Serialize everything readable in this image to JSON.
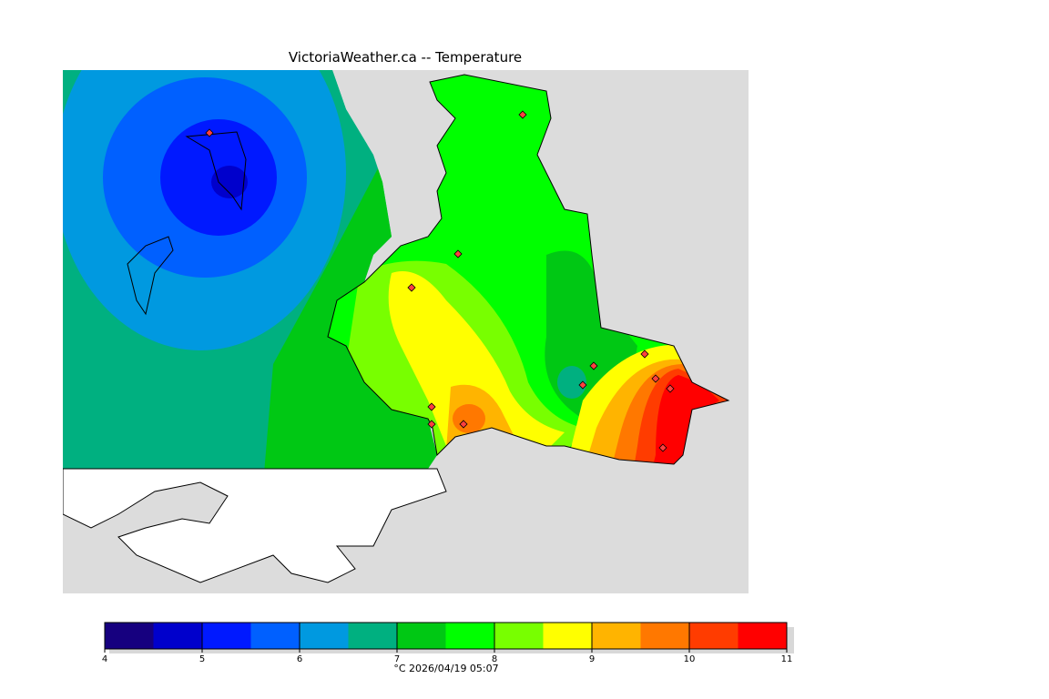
{
  "title": "VictoriaWeather.ca -- Temperature",
  "colorbar": {
    "caption": "°C  2026/04/19 05:07",
    "ticks": [
      "4",
      "5",
      "6",
      "7",
      "8",
      "9",
      "10",
      "11"
    ],
    "bins": [
      4,
      4.5,
      5,
      5.5,
      6,
      6.5,
      7,
      7.5,
      8,
      8.5,
      9,
      9.5,
      10,
      10.5,
      11
    ],
    "colors": [
      "#16007f",
      "#0000cc",
      "#0019ff",
      "#0060ff",
      "#0099e0",
      "#00b080",
      "#00c814",
      "#00ff00",
      "#78ff00",
      "#ffff00",
      "#ffb400",
      "#ff7800",
      "#ff3c00",
      "#ff0000"
    ]
  },
  "map": {
    "background": "#dcdcdc",
    "unit": "°C"
  }
}
